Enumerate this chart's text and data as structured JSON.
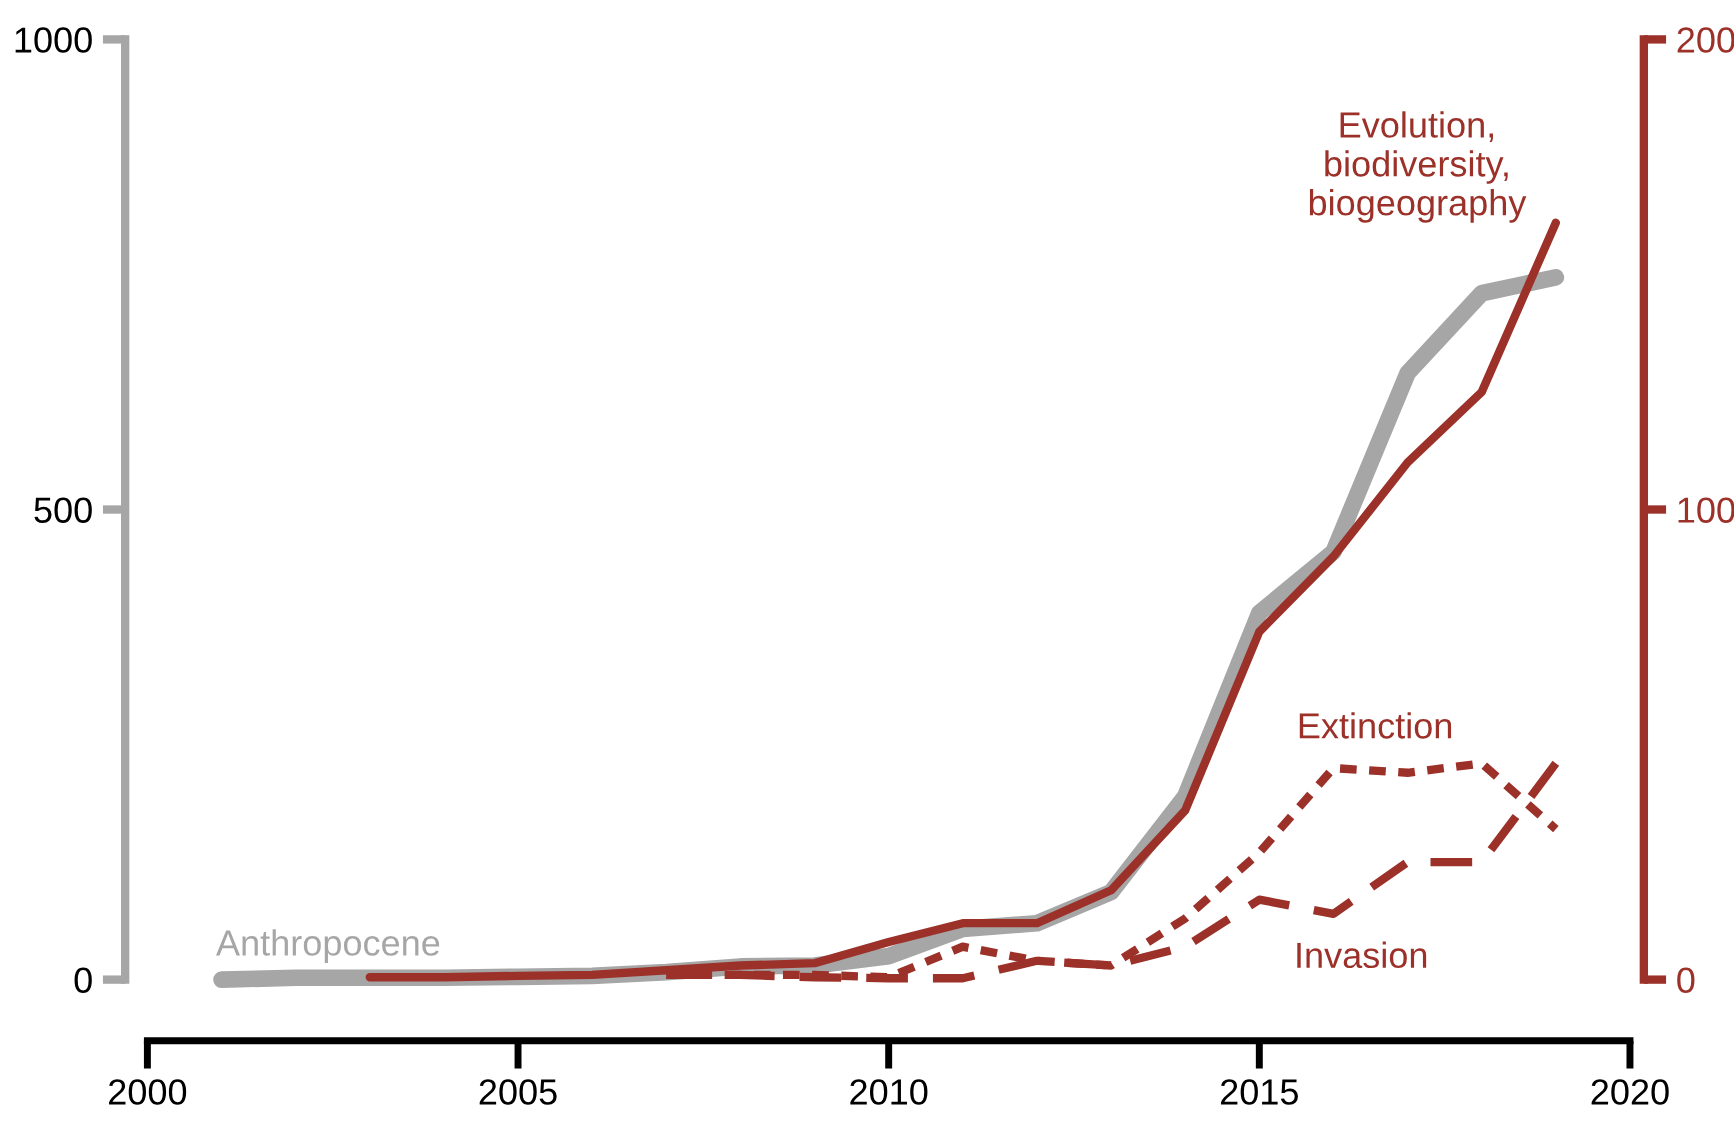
{
  "chart_data": {
    "type": "line",
    "ylim": [
      0,
      1000
    ],
    "yticks": [
      0,
      500,
      1000
    ],
    "y2lim": [
      0,
      200
    ],
    "y2ticks": [
      0,
      100,
      200
    ],
    "xlim": [
      2000,
      2020
    ],
    "xticks": [
      2000,
      2005,
      2010,
      2015,
      2020
    ],
    "grid": false,
    "legend": false,
    "marker": "none",
    "series": [
      {
        "name": "Anthropocene",
        "color": "#a6a6a6",
        "axis": "y",
        "line_style": "solid",
        "x": [
          2001,
          2002,
          2003,
          2004,
          2005,
          2006,
          2007,
          2008,
          2009,
          2010,
          2011,
          2012,
          2013,
          2014,
          2015,
          2016,
          2017,
          2018,
          2019
        ],
        "values": [
          0,
          2,
          2,
          2,
          3,
          4,
          8,
          14,
          15,
          25,
          54,
          60,
          93,
          195,
          390,
          455,
          645,
          730,
          747
        ]
      },
      {
        "name": "Evolution,\nbiodiversity,\nbiogeography",
        "color": "#9b3129",
        "axis": "y2",
        "line_style": "solid",
        "x": [
          2003,
          2004,
          2005,
          2006,
          2007,
          2008,
          2009,
          2010,
          2011,
          2012,
          2013,
          2014,
          2015,
          2016,
          2017,
          2018,
          2019
        ],
        "values": [
          0.5,
          0.5,
          0.8,
          1,
          2,
          3,
          3.5,
          8,
          12,
          12,
          19,
          36,
          74,
          90,
          110,
          125,
          161
        ]
      },
      {
        "name": "Extinction",
        "color": "#9b3129",
        "axis": "y2",
        "line_style": "dotted",
        "x": [
          2007,
          2008,
          2009,
          2010,
          2011,
          2012,
          2013,
          2014,
          2015,
          2016,
          2017,
          2018,
          2019
        ],
        "values": [
          1,
          1,
          1,
          0.5,
          7,
          4,
          3,
          13,
          27,
          45,
          44,
          46,
          32
        ]
      },
      {
        "name": "Invasion",
        "color": "#9b3129",
        "axis": "y2",
        "line_style": "dashed",
        "x": [
          2007,
          2008,
          2009,
          2010,
          2011,
          2012,
          2013,
          2014,
          2015,
          2016,
          2017,
          2018,
          2019
        ],
        "values": [
          1,
          1,
          0.5,
          0.3,
          0.3,
          4,
          3,
          7,
          17,
          14,
          25,
          25,
          46
        ]
      }
    ]
  }
}
